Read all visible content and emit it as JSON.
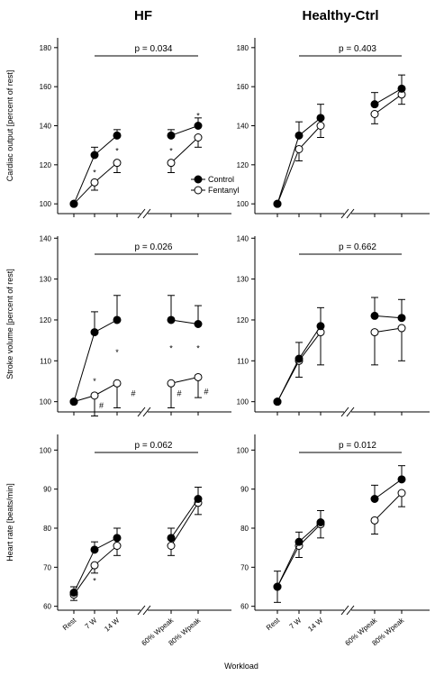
{
  "columns": [
    "HF",
    "Healthy-Ctrl"
  ],
  "xlabel": "Workload",
  "x_categories": [
    "Rest",
    "7 W",
    "14 W",
    "60% Wpeak",
    "80% Wpeak"
  ],
  "legend": {
    "control": "Control",
    "fentanyl": "Fentanyl"
  },
  "colors": {
    "control": "#000000",
    "fentanyl": "#ffffff",
    "line": "#000000"
  },
  "chart_data": [
    {
      "type": "line",
      "row": 0,
      "col": 0,
      "ylabel": "Cardiac output [percent of rest]",
      "ylim": [
        95,
        185
      ],
      "yticks": [
        100,
        120,
        140,
        160,
        180
      ],
      "p_label": "p = 0.034",
      "series": [
        {
          "name": "Control",
          "values": [
            100,
            125,
            135,
            135,
            140
          ],
          "err": [
            0,
            4,
            3,
            3,
            4
          ]
        },
        {
          "name": "Fentanyl",
          "values": [
            100,
            111,
            121,
            121,
            134
          ],
          "err": [
            0,
            4,
            5,
            5,
            5
          ]
        }
      ],
      "marks": [
        {
          "x": 1,
          "y": 116,
          "text": "*"
        },
        {
          "x": 2,
          "y": 127,
          "text": "*"
        },
        {
          "x": 3,
          "y": 127,
          "text": "*"
        },
        {
          "x": 4,
          "y": 145,
          "text": "*"
        }
      ],
      "legend": true
    },
    {
      "type": "line",
      "row": 0,
      "col": 1,
      "ylabel": "",
      "ylim": [
        95,
        185
      ],
      "yticks": [
        100,
        120,
        140,
        160,
        180
      ],
      "p_label": "p = 0.403",
      "series": [
        {
          "name": "Control",
          "values": [
            100,
            135,
            144,
            151,
            159
          ],
          "err": [
            0,
            7,
            7,
            6,
            7
          ]
        },
        {
          "name": "Fentanyl",
          "values": [
            100,
            128,
            140,
            146,
            156
          ],
          "err": [
            0,
            6,
            6,
            5,
            5
          ]
        }
      ],
      "marks": [],
      "legend": false
    },
    {
      "type": "line",
      "row": 1,
      "col": 0,
      "ylabel": "Stroke volume [percent of rest]",
      "ylim": [
        97.5,
        140.5
      ],
      "yticks": [
        100,
        110,
        120,
        130,
        140
      ],
      "p_label": "p = 0.026",
      "series": [
        {
          "name": "Control",
          "values": [
            100,
            117,
            120,
            120,
            119
          ],
          "err": [
            0,
            5,
            6,
            6,
            4.5
          ]
        },
        {
          "name": "Fentanyl",
          "values": [
            100,
            101.5,
            104.5,
            104.5,
            106
          ],
          "err": [
            0,
            5,
            6,
            6,
            5
          ]
        }
      ],
      "marks": [
        {
          "x": 1,
          "y": 105,
          "text": "*"
        },
        {
          "x": 2,
          "y": 112,
          "text": "*"
        },
        {
          "x": 3,
          "y": 113,
          "text": "*"
        },
        {
          "x": 4,
          "y": 113,
          "text": "*"
        },
        {
          "x": 1.3,
          "y": 99,
          "text": "#"
        },
        {
          "x": 2.3,
          "y": 102,
          "text": "#"
        },
        {
          "x": 3.3,
          "y": 102,
          "text": "#"
        },
        {
          "x": 4.3,
          "y": 102.5,
          "text": "#"
        }
      ],
      "legend": false
    },
    {
      "type": "line",
      "row": 1,
      "col": 1,
      "ylabel": "",
      "ylim": [
        97.5,
        140.5
      ],
      "yticks": [
        100,
        110,
        120,
        130,
        140
      ],
      "p_label": "p = 0.662",
      "series": [
        {
          "name": "Control",
          "values": [
            100,
            110.5,
            118.5,
            121,
            120.5
          ],
          "err": [
            0,
            4,
            4.5,
            4.5,
            4.5
          ]
        },
        {
          "name": "Fentanyl",
          "values": [
            100,
            110,
            117,
            117,
            118
          ],
          "err": [
            0,
            4,
            8,
            8,
            8
          ]
        }
      ],
      "marks": [],
      "legend": false
    },
    {
      "type": "line",
      "row": 2,
      "col": 0,
      "ylabel": "Heart rate [beats/min]",
      "ylim": [
        59,
        104
      ],
      "yticks": [
        60,
        70,
        80,
        90,
        100
      ],
      "p_label": "p = 0.062",
      "series": [
        {
          "name": "Control",
          "values": [
            63.5,
            74.5,
            77.5,
            77.5,
            87.5
          ],
          "err": [
            1.5,
            2,
            2.5,
            2.5,
            3
          ]
        },
        {
          "name": "Fentanyl",
          "values": [
            63,
            70.5,
            75.5,
            75.5,
            86.5
          ],
          "err": [
            1.5,
            2,
            2.5,
            2.5,
            3
          ]
        }
      ],
      "marks": [
        {
          "x": 1,
          "y": 66.5,
          "text": "*"
        }
      ],
      "legend": false
    },
    {
      "type": "line",
      "row": 2,
      "col": 1,
      "ylabel": "",
      "ylim": [
        59,
        104
      ],
      "yticks": [
        60,
        70,
        80,
        90,
        100
      ],
      "p_label": "p = 0.012",
      "series": [
        {
          "name": "Control",
          "values": [
            65,
            76.5,
            81.5,
            87.5,
            92.5
          ],
          "err": [
            4,
            2.5,
            3,
            3.5,
            3.5
          ]
        },
        {
          "name": "Fentanyl",
          "values": [
            65,
            75.5,
            81,
            82,
            89
          ],
          "err": [
            4,
            3,
            3.5,
            3.5,
            3.5
          ]
        }
      ],
      "marks": [],
      "legend": false
    }
  ]
}
